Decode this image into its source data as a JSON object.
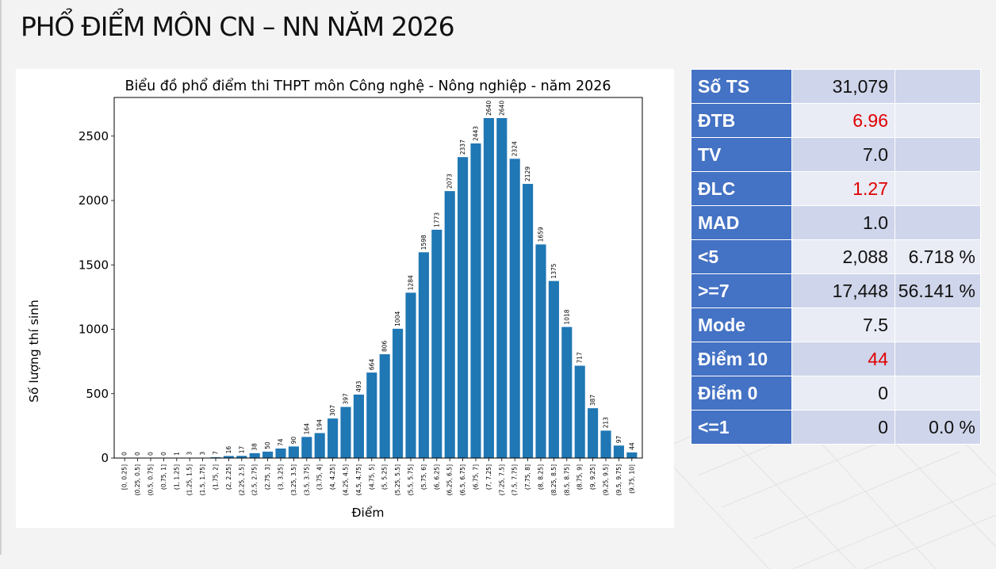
{
  "page": {
    "title": "PHỔ ĐIỂM MÔN CN – NN NĂM 2026"
  },
  "stats": [
    {
      "label": "Số TS",
      "value": "31,079",
      "pct": "",
      "value_red": false
    },
    {
      "label": "ĐTB",
      "value": "6.96",
      "pct": "",
      "value_red": true
    },
    {
      "label": "TV",
      "value": "7.0",
      "pct": "",
      "value_red": false
    },
    {
      "label": "ĐLC",
      "value": "1.27",
      "pct": "",
      "value_red": true
    },
    {
      "label": "MAD",
      "value": "1.0",
      "pct": "",
      "value_red": false
    },
    {
      "label": "<5",
      "value": "2,088",
      "pct": "6.718 %",
      "value_red": false
    },
    {
      "label": ">=7",
      "value": "17,448",
      "pct": "56.141 %",
      "value_red": false
    },
    {
      "label": "Mode",
      "value": "7.5",
      "pct": "",
      "value_red": false
    },
    {
      "label": "Điểm 10",
      "value": "44",
      "pct": "",
      "value_red": true
    },
    {
      "label": "Điểm 0",
      "value": "0",
      "pct": "",
      "value_red": false
    },
    {
      "label": "<=1",
      "value": "0",
      "pct": "0.0 %",
      "value_red": false
    }
  ],
  "colors": {
    "bar": "#1f77b4",
    "header_cell": "#4472c4",
    "highlight_text": "#e00000"
  },
  "chart_data": {
    "type": "bar",
    "title": "Biểu đồ phổ điểm thi THPT môn Công nghệ - Nông nghiệp - năm 2026",
    "xlabel": "Điểm",
    "ylabel": "Số lượng thí sinh",
    "ylim": [
      0,
      2800
    ],
    "yticks": [
      0,
      500,
      1000,
      1500,
      2000,
      2500
    ],
    "grid": false,
    "categories": [
      "[0, 0.25]",
      "(0.25, 0.5]",
      "(0.5, 0.75]",
      "(0.75, 1]",
      "(1, 1.25]",
      "(1.25, 1.5]",
      "(1.5, 1.75]",
      "(1.75, 2]",
      "(2, 2.25]",
      "(2.25, 2.5]",
      "(2.5, 2.75]",
      "(2.75, 3]",
      "(3, 3.25]",
      "(3.25, 3.5]",
      "(3.5, 3.75]",
      "(3.75, 4]",
      "(4, 4.25]",
      "(4.25, 4.5]",
      "(4.5, 4.75]",
      "(4.75, 5]",
      "(5, 5.25]",
      "(5.25, 5.5]",
      "(5.5, 5.75]",
      "(5.75, 6]",
      "(6, 6.25]",
      "(6.25, 6.5]",
      "(6.5, 6.75]",
      "(6.75, 7]",
      "(7, 7.25]",
      "(7.25, 7.5]",
      "(7.5, 7.75]",
      "(7.75, 8]",
      "(8, 8.25]",
      "(8.25, 8.5]",
      "(8.5, 8.75]",
      "(8.75, 9]",
      "(9, 9.25]",
      "(9.25, 9.5]",
      "(9.5, 9.75]",
      "(9.75, 10]"
    ],
    "values": [
      0,
      0,
      0,
      0,
      1,
      3,
      3,
      7,
      16,
      17,
      38,
      50,
      74,
      90,
      164,
      194,
      307,
      397,
      493,
      664,
      806,
      1004,
      1284,
      1598,
      1773,
      2073,
      2337,
      2443,
      2640,
      2640,
      2324,
      2129,
      1659,
      1375,
      1018,
      717,
      387,
      213,
      97,
      44
    ]
  }
}
